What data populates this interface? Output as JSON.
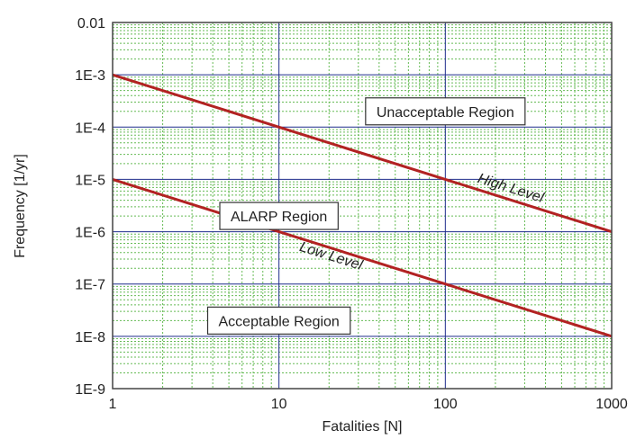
{
  "chart_data": {
    "type": "line",
    "xlabel": "Fatalities [N]",
    "ylabel": "Frequency [1/yr]",
    "x_scale": "log",
    "y_scale": "log",
    "xlim": [
      1,
      1000
    ],
    "ylim": [
      1e-09,
      0.01
    ],
    "x_ticks": [
      1,
      10,
      100,
      1000
    ],
    "x_tick_labels": [
      "1",
      "10",
      "100",
      "1000"
    ],
    "y_ticks": [
      0.01,
      0.001,
      0.0001,
      1e-05,
      1e-06,
      1e-07,
      1e-08,
      1e-09
    ],
    "y_tick_labels": [
      "0.01",
      "1E-3",
      "1E-4",
      "1E-5",
      "1E-6",
      "1E-7",
      "1E-8",
      "1E-9"
    ],
    "grid": true,
    "minor_grid": true,
    "series": [
      {
        "name": "High Level",
        "x": [
          1,
          10,
          100,
          1000
        ],
        "y": [
          0.001,
          0.0001,
          1e-05,
          1e-06
        ],
        "color": "#b22222"
      },
      {
        "name": "Low Level",
        "x": [
          1,
          10,
          100,
          1000
        ],
        "y": [
          1e-05,
          1e-06,
          1e-07,
          1e-08
        ],
        "color": "#b22222"
      }
    ],
    "annotations": [
      {
        "text": "Unacceptable Region",
        "x": 100,
        "y": 0.0002
      },
      {
        "text": "ALARP Region",
        "x": 10,
        "y": 2e-06
      },
      {
        "text": "Acceptable Region",
        "x": 10,
        "y": 2e-08
      }
    ],
    "colors": {
      "major_grid": "#1f2d8c",
      "minor_grid": "#66bb55",
      "lines": "#b22222",
      "axis": "#333333"
    }
  }
}
